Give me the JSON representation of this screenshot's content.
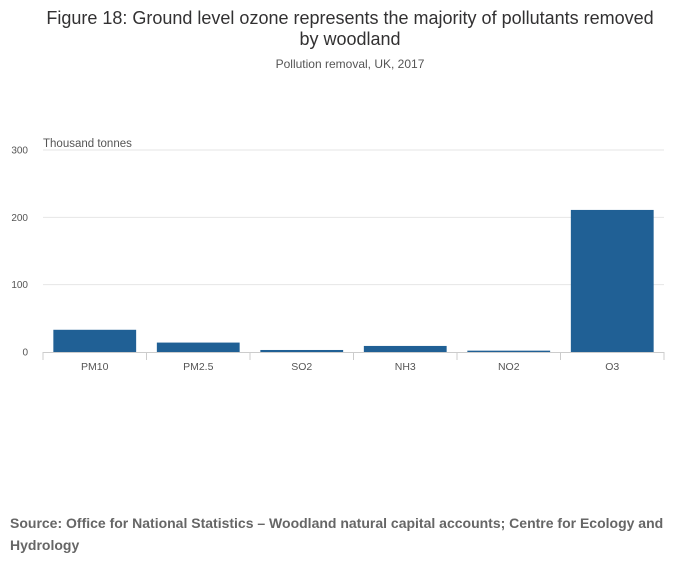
{
  "chart_data": {
    "type": "bar",
    "title": "Figure 18: Ground level ozone represents the majority of pollutants removed by woodland",
    "subtitle": "Pollution removal, UK, 2017",
    "ylabel": "Thousand tonnes",
    "xlabel": "",
    "categories": [
      "PM10",
      "PM2.5",
      "SO2",
      "NH3",
      "NO2",
      "O3"
    ],
    "values": [
      33,
      14,
      3,
      9,
      2,
      211
    ],
    "ylim": [
      0,
      300
    ],
    "yticks": [
      0,
      100,
      200,
      300
    ],
    "grid": true,
    "bar_color": "#206095"
  },
  "source": "Source: Office for National Statistics – Woodland natural capital accounts; Centre for Ecology and Hydrology"
}
